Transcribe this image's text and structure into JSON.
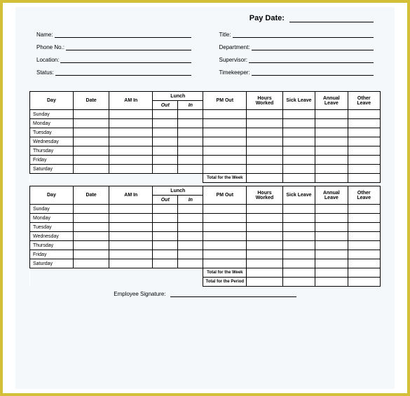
{
  "paydate_label": "Pay Date:",
  "info_left": [
    {
      "label": "Name:"
    },
    {
      "label": "Phone No.:"
    },
    {
      "label": "Location:"
    },
    {
      "label": "Status:"
    }
  ],
  "info_right": [
    {
      "label": "Title:"
    },
    {
      "label": "Department:"
    },
    {
      "label": "Supervisor:"
    },
    {
      "label": "Timekeeper:"
    }
  ],
  "headers": {
    "day": "Day",
    "date": "Date",
    "amin": "AM In",
    "lunch": "Lunch",
    "lunch_out": "Out",
    "lunch_in": "In",
    "pmout": "PM Out",
    "hours": "Hours Worked",
    "sick": "Sick Leave",
    "annual": "Annual Leave",
    "other": "Other Leave"
  },
  "days": [
    "Sunday",
    "Monday",
    "Tuesday",
    "Wednesday",
    "Thursday",
    "Friday",
    "Saturday"
  ],
  "total_week": "Total for the Week",
  "total_period": "Total for the Period",
  "signature_label": "Employee Signature:",
  "colors": {
    "frame": "#d4c038",
    "paper": "#f5f8fb",
    "border": "#000000"
  }
}
